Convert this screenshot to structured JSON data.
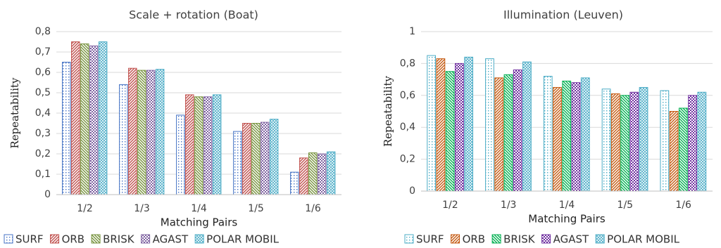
{
  "chart_data": [
    {
      "type": "bar",
      "title": "Scale + rotation (Boat)",
      "x_label": "Matching Pairs",
      "y_label": "Repeatability",
      "categories": [
        "1/2",
        "1/3",
        "1/4",
        "1/5",
        "1/6"
      ],
      "series": [
        {
          "name": "SURF",
          "color": "#4472c4",
          "values": [
            0.65,
            0.54,
            0.39,
            0.31,
            0.11
          ]
        },
        {
          "name": "ORB",
          "color": "#c0504d",
          "values": [
            0.75,
            0.62,
            0.49,
            0.35,
            0.18
          ]
        },
        {
          "name": "BRISK",
          "color": "#76923c",
          "values": [
            0.74,
            0.61,
            0.48,
            0.35,
            0.205
          ]
        },
        {
          "name": "AGAST",
          "color": "#8064a2",
          "values": [
            0.73,
            0.61,
            0.48,
            0.355,
            0.2
          ]
        },
        {
          "name": "POLAR MOBIL",
          "color": "#4bacc6",
          "values": [
            0.75,
            0.615,
            0.49,
            0.37,
            0.21
          ]
        }
      ],
      "ylim": [
        0,
        0.8
      ],
      "yticks": [
        0,
        {
          "value": 0.1,
          "label": "0,1"
        },
        {
          "value": 0.2,
          "label": "0,2"
        },
        {
          "value": 0.3,
          "label": "0,3"
        },
        {
          "value": 0.4,
          "label": "0,4"
        },
        {
          "value": 0.5,
          "label": "0,5"
        },
        {
          "value": 0.6,
          "label": "0,6"
        },
        {
          "value": 0.7,
          "label": "0,7"
        },
        {
          "value": 0.8,
          "label": "0,8"
        }
      ],
      "grid": true
    },
    {
      "type": "bar",
      "title": "Illumination (Leuven)",
      "x_label": "Matching Pairs",
      "y_label": "Repeatability",
      "categories": [
        "1/2",
        "1/3",
        "1/4",
        "1/5",
        "1/6"
      ],
      "series": [
        {
          "name": "SURF",
          "color": "#4bacc6",
          "values": [
            0.85,
            0.83,
            0.72,
            0.64,
            0.63
          ]
        },
        {
          "name": "ORB",
          "color": "#c55a11",
          "values": [
            0.83,
            0.71,
            0.65,
            0.61,
            0.5
          ]
        },
        {
          "name": "BRISK",
          "color": "#00b050",
          "values": [
            0.75,
            0.73,
            0.69,
            0.6,
            0.52
          ]
        },
        {
          "name": "AGAST",
          "color": "#7030a0",
          "values": [
            0.8,
            0.76,
            0.68,
            0.62,
            0.6
          ]
        },
        {
          "name": "POLAR MOBIL",
          "color": "#4bacc6",
          "values": [
            0.84,
            0.81,
            0.71,
            0.65,
            0.62
          ]
        }
      ],
      "ylim": [
        0,
        1
      ],
      "yticks": [
        0,
        {
          "value": 0.2,
          "label": "0,2"
        },
        {
          "value": 0.4,
          "label": "0,4"
        },
        {
          "value": 0.6,
          "label": "0,6"
        },
        {
          "value": 0.8,
          "label": "0,8"
        },
        1
      ],
      "grid": true
    }
  ]
}
